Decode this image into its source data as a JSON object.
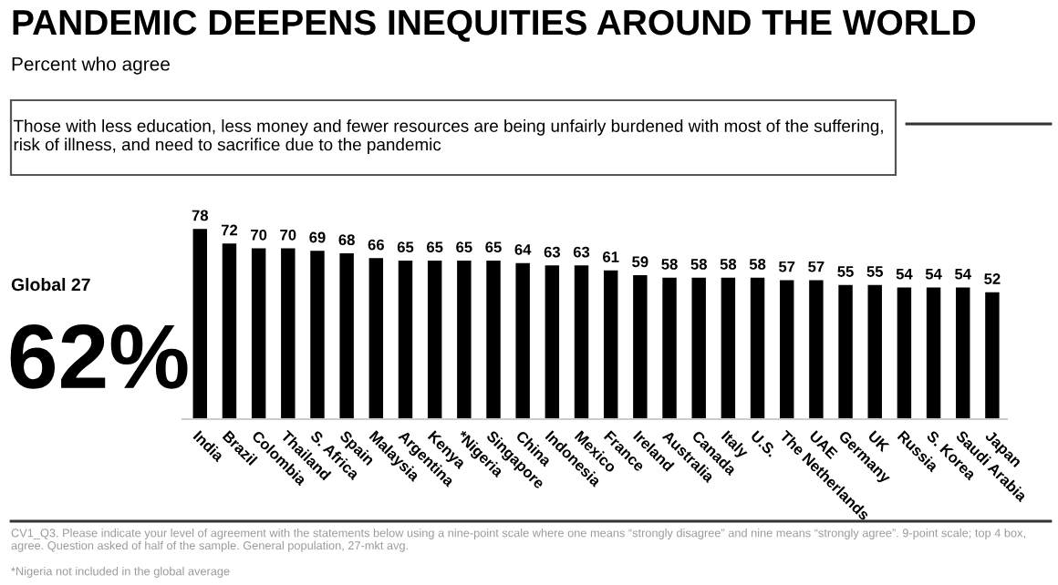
{
  "chart_data": {
    "type": "bar",
    "title": "PANDEMIC DEEPENS INEQUITIES AROUND THE WORLD",
    "subtitle": "Percent who agree",
    "categories": [
      "India",
      "Brazil",
      "Colombia",
      "Thailand",
      "S. Africa",
      "Spain",
      "Malaysia",
      "Argentina",
      "Kenya",
      "*Nigeria",
      "Singapore",
      "China",
      "Indonesia",
      "Mexico",
      "France",
      "Ireland",
      "Australia",
      "Canada",
      "Italy",
      "U.S.",
      "The Netherlands",
      "UAE",
      "Germany",
      "UK",
      "Russia",
      "S. Korea",
      "Saudi Arabia",
      "Japan"
    ],
    "values": [
      78,
      72,
      70,
      70,
      69,
      68,
      66,
      65,
      65,
      65,
      65,
      64,
      63,
      63,
      61,
      59,
      58,
      58,
      58,
      58,
      57,
      57,
      55,
      55,
      54,
      54,
      54,
      52
    ],
    "color": "#000000",
    "data_labels": true,
    "annotations": [
      "Those with less education, less money and fewer resources are being unfairly burdened with most of the suffering, risk of illness, and need to sacrifice due to the pandemic",
      "Global 27",
      "62%",
      "CV1_Q3. Please indicate your level of agreement with the statements below using a nine-point scale where one means “strongly disagree” and nine means “strongly agree”. 9-point scale; top 4 box, agree. Question asked of half of the sample. General population, 27-mkt avg.",
      "*Nigeria not included in the global average"
    ]
  }
}
